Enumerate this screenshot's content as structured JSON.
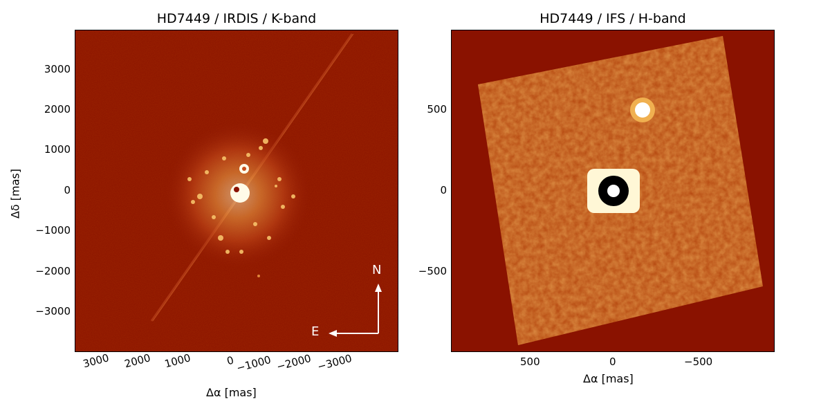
{
  "left_panel": {
    "title": "HD7449 / IRDIS / K-band",
    "x_ticks": [
      "3000",
      "2000",
      "1000",
      "0",
      "−1000",
      "−2000",
      "−3000"
    ],
    "y_ticks": [
      "3000",
      "2000",
      "1000",
      "0",
      "−1000",
      "−2000",
      "−3000"
    ],
    "x_label": "Δα [mas]",
    "y_label": "Δδ [mas]",
    "compass": {
      "north": "N",
      "east": "E"
    }
  },
  "right_panel": {
    "title": "HD7449 / IFS / H-band",
    "x_ticks": [
      "500",
      "0",
      "−500"
    ],
    "y_ticks": [
      "500",
      "0",
      "−500"
    ],
    "x_label": "Δα [mas]"
  },
  "colors": {
    "background_dark_red": "#8a1200",
    "bright_yellow": "#ffe08a",
    "white": "#ffffff"
  }
}
